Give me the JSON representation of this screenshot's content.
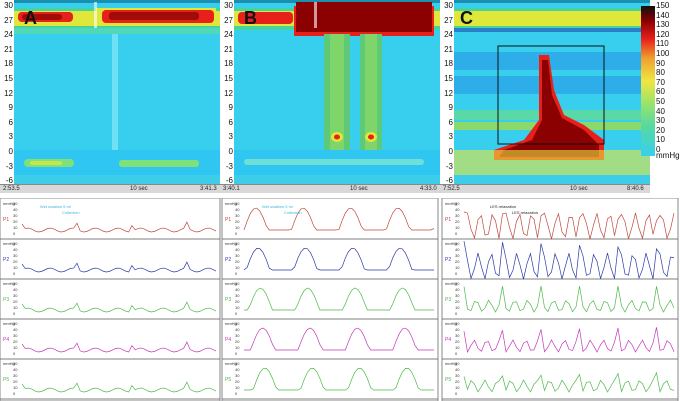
{
  "panels": [
    {
      "letter": "A",
      "time_start": "2:53.5",
      "time_end": "3:41.3",
      "scale": "10 sec"
    },
    {
      "letter": "B",
      "time_start": "3:40.1",
      "time_end": "4:33.0",
      "scale": "10 sec"
    },
    {
      "letter": "C",
      "time_start": "7:52.5",
      "time_end": "8:40.6",
      "scale": "10 sec"
    }
  ],
  "y_axis_ticks": [
    "30",
    "27",
    "24",
    "21",
    "18",
    "15",
    "12",
    "9",
    "6",
    "3",
    "0",
    "-3",
    "-6"
  ],
  "colorbar": {
    "ticks": [
      "150",
      "140",
      "130",
      "120",
      "110",
      "100",
      "90",
      "80",
      "70",
      "60",
      "50",
      "40",
      "30",
      "20",
      "10",
      "0"
    ],
    "unit": "mmHg"
  },
  "channels": [
    "P1",
    "P2",
    "P3",
    "P4",
    "P5"
  ],
  "channel_unit": "mmHg",
  "channel_ticks": [
    "50",
    "40",
    "30",
    "20",
    "10",
    "0"
  ],
  "annotations": {
    "a_notes": [
      "Wet swallow 5 ml",
      "Collection"
    ],
    "b_notes": [
      "Wet swallow 5 ml",
      "Collection"
    ],
    "c_notes": [
      "LES relaxation",
      "LES relaxation"
    ]
  },
  "colors": {
    "background": "#2bd0ee",
    "hot": "#8b0000",
    "red": "#e0201c",
    "yellow": "#f7e02a",
    "green": "#3ecf3a"
  }
}
